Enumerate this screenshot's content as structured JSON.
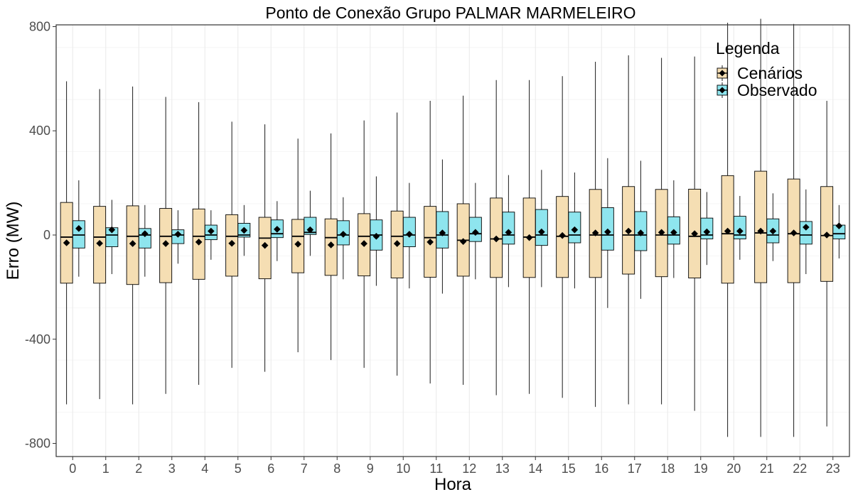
{
  "chart_data": {
    "type": "box",
    "title": "Ponto de Conexão Grupo PALMAR MARMELEIRO",
    "xlabel": "Hora",
    "ylabel": "Erro (MW)",
    "ylim": [
      -840,
      800
    ],
    "yticks": [
      -800,
      -400,
      0,
      400,
      800
    ],
    "grid": true,
    "legend": {
      "title": "Legenda",
      "position": "top-right"
    },
    "categories": [
      "0",
      "1",
      "2",
      "3",
      "4",
      "5",
      "6",
      "7",
      "8",
      "9",
      "10",
      "11",
      "12",
      "13",
      "14",
      "15",
      "16",
      "17",
      "18",
      "19",
      "20",
      "21",
      "22",
      "23"
    ],
    "series": [
      {
        "name": "Cenários",
        "color": "#f5deb3",
        "boxes": [
          {
            "min": -650,
            "q1": -185,
            "median": -8,
            "q3": 125,
            "max": 590,
            "mean": -30
          },
          {
            "min": -630,
            "q1": -185,
            "median": -8,
            "q3": 110,
            "max": 560,
            "mean": -32
          },
          {
            "min": -650,
            "q1": -190,
            "median": -5,
            "q3": 112,
            "max": 570,
            "mean": -33
          },
          {
            "min": -610,
            "q1": -183,
            "median": -5,
            "q3": 102,
            "max": 530,
            "mean": -33
          },
          {
            "min": -575,
            "q1": -170,
            "median": -5,
            "q3": 100,
            "max": 510,
            "mean": -27
          },
          {
            "min": -510,
            "q1": -158,
            "median": -5,
            "q3": 78,
            "max": 435,
            "mean": -32
          },
          {
            "min": -525,
            "q1": -168,
            "median": -12,
            "q3": 68,
            "max": 425,
            "mean": -40
          },
          {
            "min": -450,
            "q1": -145,
            "median": -5,
            "q3": 60,
            "max": 370,
            "mean": -35
          },
          {
            "min": -480,
            "q1": -155,
            "median": -10,
            "q3": 62,
            "max": 390,
            "mean": -38
          },
          {
            "min": -510,
            "q1": -157,
            "median": -5,
            "q3": 82,
            "max": 440,
            "mean": -33
          },
          {
            "min": -540,
            "q1": -165,
            "median": -5,
            "q3": 92,
            "max": 470,
            "mean": -33
          },
          {
            "min": -570,
            "q1": -162,
            "median": -10,
            "q3": 110,
            "max": 515,
            "mean": -27
          },
          {
            "min": -575,
            "q1": -158,
            "median": -20,
            "q3": 120,
            "max": 535,
            "mean": -25
          },
          {
            "min": -615,
            "q1": -163,
            "median": -15,
            "q3": 142,
            "max": 595,
            "mean": -15
          },
          {
            "min": -610,
            "q1": -163,
            "median": -8,
            "q3": 142,
            "max": 595,
            "mean": -10
          },
          {
            "min": -625,
            "q1": -163,
            "median": -5,
            "q3": 148,
            "max": 610,
            "mean": -2
          },
          {
            "min": -660,
            "q1": -163,
            "median": 0,
            "q3": 175,
            "max": 665,
            "mean": 8
          },
          {
            "min": -650,
            "q1": -150,
            "median": 0,
            "q3": 186,
            "max": 690,
            "mean": 15
          },
          {
            "min": -650,
            "q1": -160,
            "median": 0,
            "q3": 175,
            "max": 680,
            "mean": 10
          },
          {
            "min": -675,
            "q1": -165,
            "median": -5,
            "q3": 176,
            "max": 685,
            "mean": 5
          },
          {
            "min": -775,
            "q1": -185,
            "median": 5,
            "q3": 228,
            "max": 815,
            "mean": 15
          },
          {
            "min": -775,
            "q1": -183,
            "median": 8,
            "q3": 245,
            "max": 830,
            "mean": 15
          },
          {
            "min": -775,
            "q1": -183,
            "median": 5,
            "q3": 215,
            "max": 810,
            "mean": 8
          },
          {
            "min": -735,
            "q1": -178,
            "median": -2,
            "q3": 186,
            "max": 515,
            "mean": 0
          }
        ]
      },
      {
        "name": "Observado",
        "color": "#8ee5ee",
        "boxes": [
          {
            "min": -160,
            "q1": -50,
            "median": 0,
            "q3": 55,
            "max": 210,
            "mean": 25
          },
          {
            "min": -150,
            "q1": -45,
            "median": 0,
            "q3": 28,
            "max": 135,
            "mean": 20
          },
          {
            "min": -160,
            "q1": -50,
            "median": 0,
            "q3": 25,
            "max": 115,
            "mean": 5
          },
          {
            "min": -110,
            "q1": -33,
            "median": 0,
            "q3": 20,
            "max": 95,
            "mean": 3
          },
          {
            "min": -95,
            "q1": -18,
            "median": 0,
            "q3": 38,
            "max": 95,
            "mean": 15
          },
          {
            "min": -80,
            "q1": -8,
            "median": 0,
            "q3": 45,
            "max": 115,
            "mean": 18
          },
          {
            "min": -100,
            "q1": -10,
            "median": 5,
            "q3": 58,
            "max": 130,
            "mean": 22
          },
          {
            "min": -80,
            "q1": 2,
            "median": 10,
            "q3": 68,
            "max": 170,
            "mean": 20
          },
          {
            "min": -170,
            "q1": -38,
            "median": 0,
            "q3": 55,
            "max": 145,
            "mean": 3
          },
          {
            "min": -195,
            "q1": -58,
            "median": 0,
            "q3": 58,
            "max": 225,
            "mean": -5
          },
          {
            "min": -205,
            "q1": -45,
            "median": 0,
            "q3": 68,
            "max": 200,
            "mean": 3
          },
          {
            "min": -225,
            "q1": -50,
            "median": 0,
            "q3": 90,
            "max": 290,
            "mean": 8
          },
          {
            "min": -170,
            "q1": -25,
            "median": 5,
            "q3": 68,
            "max": 200,
            "mean": 10
          },
          {
            "min": -200,
            "q1": -35,
            "median": 0,
            "q3": 88,
            "max": 230,
            "mean": 10
          },
          {
            "min": -200,
            "q1": -40,
            "median": 0,
            "q3": 98,
            "max": 250,
            "mean": 12
          },
          {
            "min": -205,
            "q1": -30,
            "median": 0,
            "q3": 88,
            "max": 240,
            "mean": 20
          },
          {
            "min": -280,
            "q1": -58,
            "median": 0,
            "q3": 105,
            "max": 295,
            "mean": 12
          },
          {
            "min": -245,
            "q1": -60,
            "median": 0,
            "q3": 90,
            "max": 285,
            "mean": 8
          },
          {
            "min": -165,
            "q1": -35,
            "median": 0,
            "q3": 70,
            "max": 210,
            "mean": 10
          },
          {
            "min": -115,
            "q1": -15,
            "median": 0,
            "q3": 65,
            "max": 165,
            "mean": 12
          },
          {
            "min": -95,
            "q1": -15,
            "median": 0,
            "q3": 72,
            "max": 150,
            "mean": 15
          },
          {
            "min": -100,
            "q1": -30,
            "median": 0,
            "q3": 62,
            "max": 160,
            "mean": 15
          },
          {
            "min": -150,
            "q1": -35,
            "median": 0,
            "q3": 52,
            "max": 175,
            "mean": 30
          },
          {
            "min": -90,
            "q1": -15,
            "median": 5,
            "q3": 38,
            "max": 115,
            "mean": 35
          }
        ]
      }
    ]
  }
}
